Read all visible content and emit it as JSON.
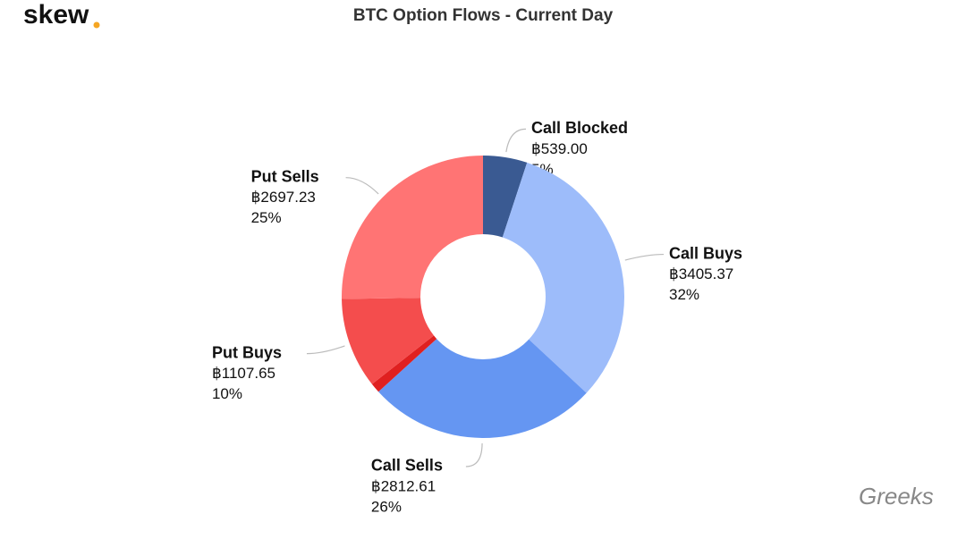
{
  "header": {
    "logo": "skew",
    "watermark": "Greeks"
  },
  "chart_data": {
    "type": "donut",
    "title": "BTC Option Flows - Current Day",
    "categories": [
      "Call Blocked",
      "Call Buys",
      "Call Sells",
      null,
      "Put Buys",
      "Put Sells"
    ],
    "values": [
      539.0,
      3405.37,
      2812.61,
      120,
      1107.65,
      2697.23
    ],
    "value_labels": [
      "฿539.00",
      "฿3405.37",
      "฿2812.61",
      null,
      "฿1107.65",
      "฿2697.23"
    ],
    "percents": [
      5,
      32,
      26,
      null,
      10,
      25
    ],
    "percent_labels": [
      "5%",
      "32%",
      "26%",
      null,
      "10%",
      "25%"
    ],
    "colors": [
      "#3a5a92",
      "#9dbcfa",
      "#6596f2",
      "#e02020",
      "#f44d4d",
      "#ff7474"
    ]
  }
}
